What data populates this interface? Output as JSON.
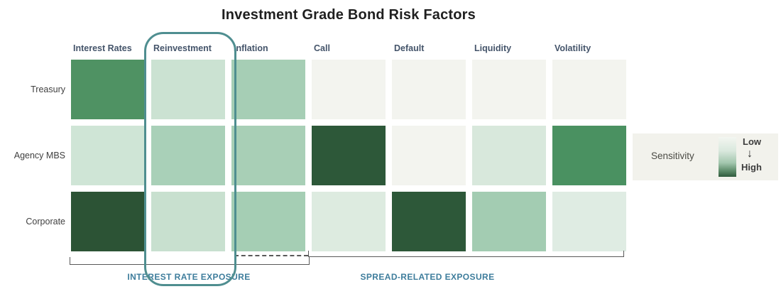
{
  "title": "Investment Grade Bond Risk Factors",
  "chart_data": {
    "type": "heatmap",
    "title": "Investment Grade Bond Risk Factors",
    "rows": [
      "Treasury",
      "Agency MBS",
      "Corporate"
    ],
    "columns": [
      "Interest Rates",
      "Reinvestment",
      "Inflation",
      "Call",
      "Default",
      "Liquidity",
      "Volatility"
    ],
    "cell_colors": [
      [
        "#4f9263",
        "#cbe2d2",
        "#a6ceb5",
        "#f3f4ef",
        "#f3f4ef",
        "#f3f4ef",
        "#f3f4ef"
      ],
      [
        "#cfe5d6",
        "#a9d0b8",
        "#a8cfb6",
        "#2d5839",
        "#f3f4ef",
        "#d8e8dc",
        "#4a9161"
      ],
      [
        "#2c5335",
        "#c8e0cf",
        "#a5ceb4",
        "#ddebe0",
        "#2d5839",
        "#a3ccb2",
        "#dfece3"
      ]
    ],
    "sensitivity_levels": [
      [
        0.7,
        0.25,
        0.42,
        0.02,
        0.02,
        0.02,
        0.02
      ],
      [
        0.22,
        0.4,
        0.42,
        0.95,
        0.02,
        0.15,
        0.7
      ],
      [
        1.0,
        0.27,
        0.43,
        0.13,
        0.95,
        0.44,
        0.12
      ]
    ],
    "legend_position": "right",
    "grid": "off"
  },
  "legend": {
    "title": "Sensitivity",
    "low_label": "Low",
    "high_label": "High",
    "arrow": "↓",
    "low_color": "#f3f6f1",
    "high_color": "#2f5a3c"
  },
  "annotations": {
    "highlighted_column": "Reinvestment",
    "brackets": [
      {
        "label": "INTEREST RATE EXPOSURE",
        "span_columns": [
          "Interest Rates",
          "Reinvestment",
          "Inflation"
        ],
        "style": "solid"
      },
      {
        "label": "SPREAD-RELATED EXPOSURE",
        "span_columns": [
          "Call",
          "Default",
          "Liquidity",
          "Volatility"
        ],
        "style": "solid-with-dashed-extension-over-inflation"
      }
    ]
  },
  "colors": {
    "highlight_ring": "#4f8e90",
    "bracket_line": "#595959",
    "bracket_label": "#3e7d9c",
    "header_text": "#44546a",
    "row_label_text": "#404040",
    "title_text": "#1f1f1f",
    "legend_panel_bg": "#f2f2ec",
    "canvas_bg": "#ffffff"
  }
}
